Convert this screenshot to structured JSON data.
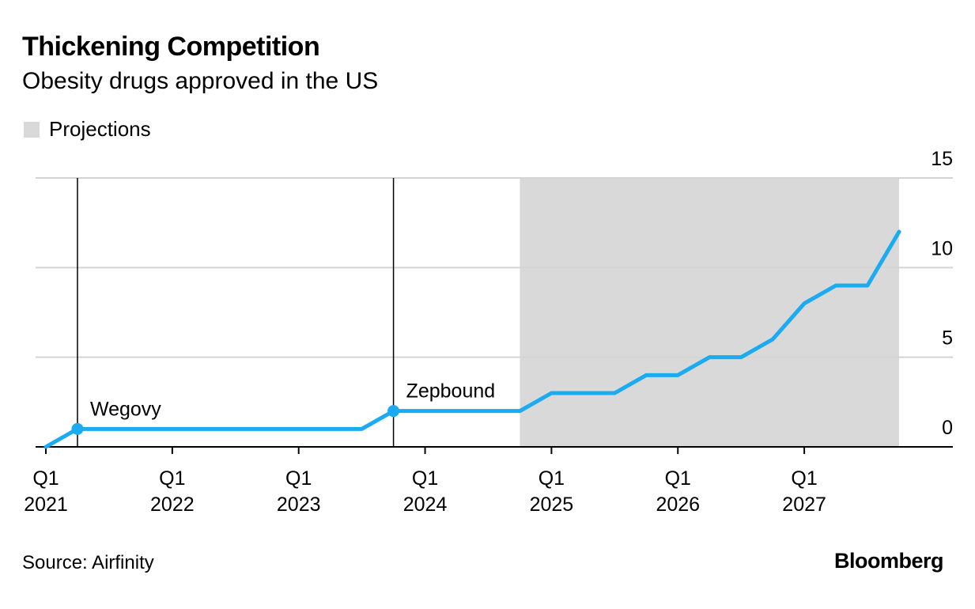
{
  "header": {
    "title": "Thickening Competition",
    "subtitle": "Obesity drugs approved in the US"
  },
  "legend": {
    "projections_label": "Projections"
  },
  "footer": {
    "source": "Source: Airfinity",
    "brand": "Bloomberg"
  },
  "colors": {
    "line": "#1aabf2",
    "projection_shade": "#d9d9d9",
    "grid": "#d4d4d4",
    "axis": "#000000"
  },
  "chart_data": {
    "type": "line",
    "title": "Thickening Competition",
    "subtitle": "Obesity drugs approved in the US",
    "xlabel": "",
    "ylabel": "",
    "ylim": [
      0,
      15
    ],
    "yticks": [
      "0",
      "5",
      "10",
      "15"
    ],
    "y_axis_side": "right",
    "grid": true,
    "x_quarter_range": [
      2021.0,
      2028.25
    ],
    "x_ticks": [
      {
        "x": 2021.0,
        "q": "Q1",
        "year": "2021"
      },
      {
        "x": 2022.0,
        "q": "Q1",
        "year": "2022"
      },
      {
        "x": 2023.0,
        "q": "Q1",
        "year": "2023"
      },
      {
        "x": 2024.0,
        "q": "Q1",
        "year": "2024"
      },
      {
        "x": 2025.0,
        "q": "Q1",
        "year": "2025"
      },
      {
        "x": 2026.0,
        "q": "Q1",
        "year": "2026"
      },
      {
        "x": 2027.0,
        "q": "Q1",
        "year": "2027"
      }
    ],
    "projection_range": [
      2024.75,
      2027.75
    ],
    "series": [
      {
        "name": "Obesity drugs approved in the US",
        "x": [
          2021.0,
          2021.25,
          2023.5,
          2023.75,
          2024.75,
          2025.0,
          2025.5,
          2025.75,
          2026.0,
          2026.25,
          2026.5,
          2026.75,
          2027.0,
          2027.25,
          2027.5,
          2027.75
        ],
        "y": [
          0,
          1,
          1,
          2,
          2,
          3,
          3,
          4,
          4,
          5,
          5,
          6,
          8,
          9,
          9,
          12
        ]
      }
    ],
    "annotations": [
      {
        "label": "Wegovy",
        "x": 2021.25,
        "y": 1
      },
      {
        "label": "Zepbound",
        "x": 2023.75,
        "y": 2
      }
    ]
  }
}
